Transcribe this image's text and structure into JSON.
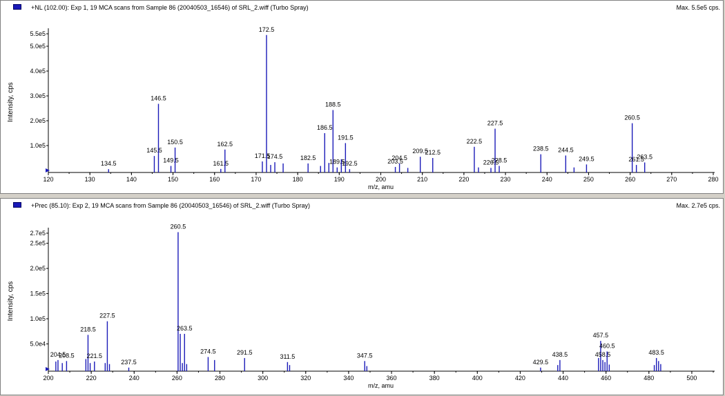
{
  "colors": {
    "series": "#1a1ab8",
    "axis": "#000000",
    "pointer": "#1a1ab8"
  },
  "panes": [
    {
      "title": "+NL (102.00): Exp 1, 19 MCA scans from Sample 86 (20040503_16546) of SRL_2.wiff (Turbo Spray)",
      "max_label": "Max. 5.5e5 cps."
    },
    {
      "title": "+Prec (85.10): Exp 2, 19 MCA scans from Sample 86 (20040503_16546) of SRL_2.wiff (Turbo Spray)",
      "max_label": "Max. 2.7e5 cps."
    }
  ],
  "chart_data": [
    {
      "type": "bar",
      "xlabel": "m/z, amu",
      "ylabel": "Intensity, cps",
      "xlim": [
        120,
        280
      ],
      "ylim": [
        0,
        550000
      ],
      "x_ticks": [
        120,
        130,
        140,
        150,
        160,
        170,
        180,
        190,
        200,
        210,
        220,
        230,
        240,
        250,
        260,
        270,
        280
      ],
      "y_ticks": [
        {
          "value": 100000,
          "label": "1.0e5"
        },
        {
          "value": 200000,
          "label": "2.0e5"
        },
        {
          "value": 300000,
          "label": "3.0e5"
        },
        {
          "value": 400000,
          "label": "4.0e5"
        },
        {
          "value": 500000,
          "label": "5.0e5"
        },
        {
          "value": 550000,
          "label": "5.5e5"
        }
      ],
      "peaks": [
        {
          "x": 134.5,
          "y": 5000,
          "label": "134.5"
        },
        {
          "x": 145.5,
          "y": 58000,
          "label": "145.5"
        },
        {
          "x": 146.5,
          "y": 268000,
          "label": "146.5"
        },
        {
          "x": 149.5,
          "y": 18000,
          "label": "149.5"
        },
        {
          "x": 150.5,
          "y": 92000,
          "label": "150.5"
        },
        {
          "x": 161.5,
          "y": 6000,
          "label": "161.5"
        },
        {
          "x": 162.5,
          "y": 84000,
          "label": "162.5"
        },
        {
          "x": 171.5,
          "y": 36000,
          "label": "171.5"
        },
        {
          "x": 172.5,
          "y": 545000,
          "label": "172.5"
        },
        {
          "x": 173.5,
          "y": 22000
        },
        {
          "x": 174.5,
          "y": 33000,
          "label": "174.5"
        },
        {
          "x": 176.5,
          "y": 28000
        },
        {
          "x": 182.5,
          "y": 28000,
          "label": "182.5"
        },
        {
          "x": 185.5,
          "y": 18000
        },
        {
          "x": 186.5,
          "y": 150000,
          "label": "186.5"
        },
        {
          "x": 187.5,
          "y": 30000
        },
        {
          "x": 188.5,
          "y": 243000,
          "label": "188.5"
        },
        {
          "x": 189.5,
          "y": 12000,
          "label": "189.5"
        },
        {
          "x": 190.5,
          "y": 45000
        },
        {
          "x": 191.5,
          "y": 110000,
          "label": "191.5"
        },
        {
          "x": 192.5,
          "y": 5000,
          "label": "192.5"
        },
        {
          "x": 203.5,
          "y": 14000,
          "label": "203.5"
        },
        {
          "x": 204.5,
          "y": 28000,
          "label": "204.5"
        },
        {
          "x": 206.5,
          "y": 10000
        },
        {
          "x": 209.5,
          "y": 55000,
          "label": "209.5"
        },
        {
          "x": 212.5,
          "y": 50000,
          "label": "212.5"
        },
        {
          "x": 222.5,
          "y": 95000,
          "label": "222.5"
        },
        {
          "x": 223.5,
          "y": 12000
        },
        {
          "x": 226.5,
          "y": 10000,
          "label": "226.5"
        },
        {
          "x": 227.5,
          "y": 168000,
          "label": "227.5"
        },
        {
          "x": 228.5,
          "y": 18000,
          "label": "228.5"
        },
        {
          "x": 238.5,
          "y": 65000,
          "label": "238.5"
        },
        {
          "x": 244.5,
          "y": 60000,
          "label": "244.5"
        },
        {
          "x": 246.5,
          "y": 12000
        },
        {
          "x": 249.5,
          "y": 24000,
          "label": "249.5"
        },
        {
          "x": 260.5,
          "y": 190000,
          "label": "260.5"
        },
        {
          "x": 261.5,
          "y": 22000,
          "label": "261.5"
        },
        {
          "x": 263.5,
          "y": 32000,
          "label": "263.5"
        }
      ]
    },
    {
      "type": "bar",
      "xlabel": "m/z, amu",
      "ylabel": "Intensity, cps",
      "xlim": [
        200,
        510
      ],
      "ylim": [
        0,
        270000
      ],
      "x_ticks": [
        200,
        220,
        240,
        260,
        280,
        300,
        320,
        340,
        360,
        380,
        400,
        420,
        440,
        460,
        480,
        500
      ],
      "y_ticks": [
        {
          "value": 50000,
          "label": "5.0e4"
        },
        {
          "value": 100000,
          "label": "1.0e5"
        },
        {
          "value": 150000,
          "label": "1.5e5"
        },
        {
          "value": 200000,
          "label": "2.0e5"
        },
        {
          "value": 250000,
          "label": "2.5e5"
        },
        {
          "value": 270000,
          "label": "2.7e5"
        }
      ],
      "peaks": [
        {
          "x": 204.5,
          "y": 18000,
          "label": "204.5"
        },
        {
          "x": 203.5,
          "y": 15000
        },
        {
          "x": 206.5,
          "y": 12000
        },
        {
          "x": 208.5,
          "y": 16000,
          "label": "208.5"
        },
        {
          "x": 218.5,
          "y": 68000,
          "label": "218.5"
        },
        {
          "x": 217.5,
          "y": 20000
        },
        {
          "x": 219.5,
          "y": 12000
        },
        {
          "x": 221.5,
          "y": 15000,
          "label": "221.5"
        },
        {
          "x": 226.5,
          "y": 12000
        },
        {
          "x": 227.5,
          "y": 95000,
          "label": "227.5"
        },
        {
          "x": 228.5,
          "y": 10000
        },
        {
          "x": 237.5,
          "y": 3000,
          "label": "237.5"
        },
        {
          "x": 260.5,
          "y": 272000,
          "label": "260.5"
        },
        {
          "x": 261.5,
          "y": 70000
        },
        {
          "x": 262.5,
          "y": 12000
        },
        {
          "x": 263.5,
          "y": 70000,
          "label": "263.5"
        },
        {
          "x": 264.5,
          "y": 10000
        },
        {
          "x": 274.5,
          "y": 24000,
          "label": "274.5"
        },
        {
          "x": 277.5,
          "y": 18000
        },
        {
          "x": 291.5,
          "y": 22000,
          "label": "291.5"
        },
        {
          "x": 311.5,
          "y": 14000,
          "label": "311.5"
        },
        {
          "x": 312.5,
          "y": 8000
        },
        {
          "x": 347.5,
          "y": 16000,
          "label": "347.5"
        },
        {
          "x": 348.5,
          "y": 6000
        },
        {
          "x": 429.5,
          "y": 3000,
          "label": "429.5"
        },
        {
          "x": 437.5,
          "y": 8000
        },
        {
          "x": 438.5,
          "y": 18000,
          "label": "438.5"
        },
        {
          "x": 456.5,
          "y": 22000
        },
        {
          "x": 457.5,
          "y": 56000,
          "label": "457.5"
        },
        {
          "x": 458.5,
          "y": 18000,
          "label": "458.5"
        },
        {
          "x": 459.5,
          "y": 14000
        },
        {
          "x": 460.5,
          "y": 35000,
          "label": "460.5"
        },
        {
          "x": 461.5,
          "y": 9000
        },
        {
          "x": 482.5,
          "y": 8000
        },
        {
          "x": 483.5,
          "y": 22000,
          "label": "483.5"
        },
        {
          "x": 484.5,
          "y": 16000
        },
        {
          "x": 485.5,
          "y": 10000
        }
      ]
    }
  ]
}
